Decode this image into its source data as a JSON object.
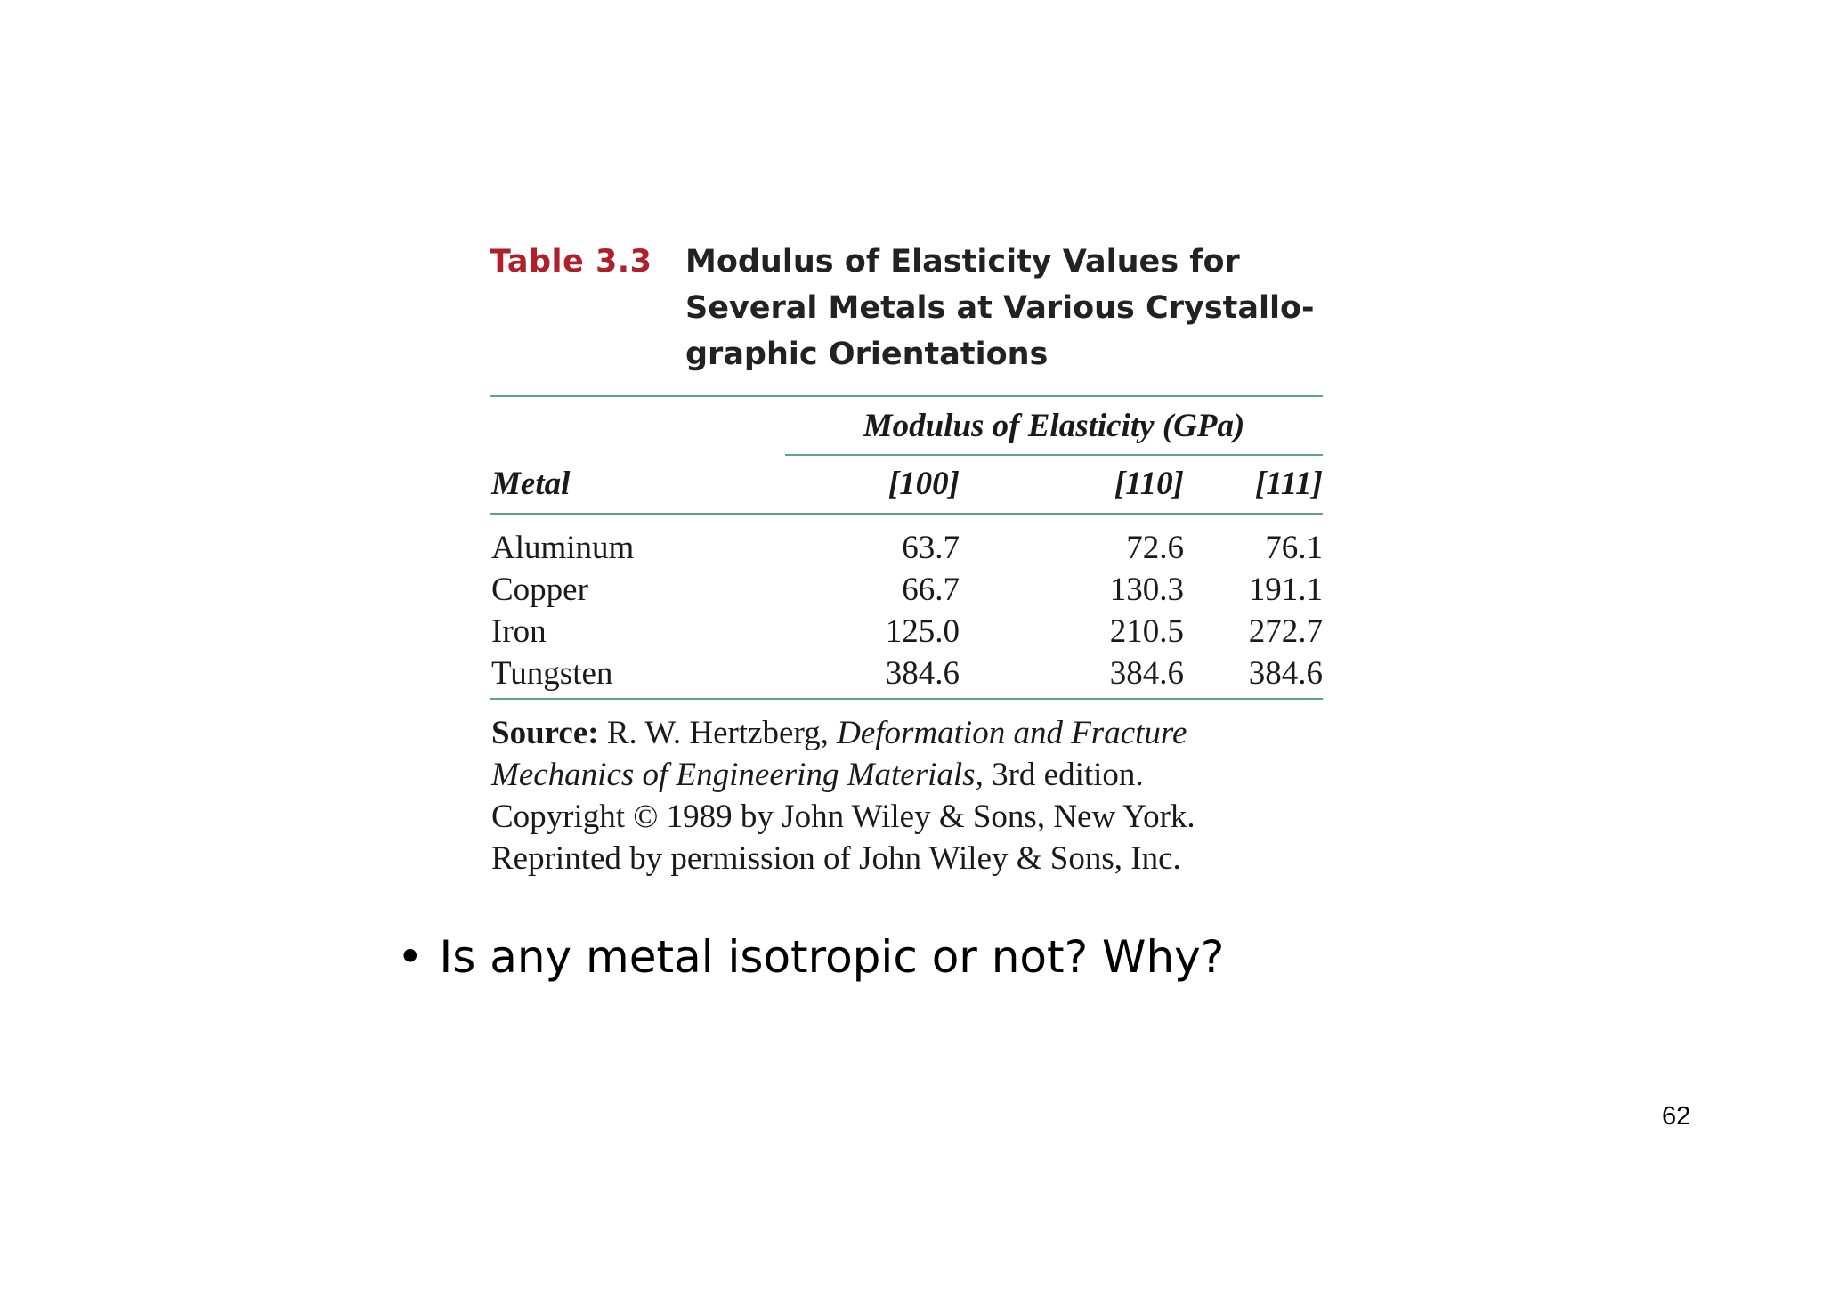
{
  "table": {
    "number": "Table 3.3",
    "title": "Modulus of Elasticity Values for Several Metals at Various Crystallo-graphic Orientations",
    "title_lines": [
      "Modulus of Elasticity Values for",
      "Several Metals at Various Crystallo-",
      "graphic Orientations"
    ],
    "group_header": "Modulus of Elasticity (GPa)",
    "columns": [
      "Metal",
      "[100]",
      "[110]",
      "[111]"
    ],
    "rows": [
      {
        "metal": "Aluminum",
        "v100": "63.7",
        "v110": "72.6",
        "v111": "76.1"
      },
      {
        "metal": "Copper",
        "v100": "66.7",
        "v110": "130.3",
        "v111": "191.1"
      },
      {
        "metal": "Iron",
        "v100": "125.0",
        "v110": "210.5",
        "v111": "272.7"
      },
      {
        "metal": "Tungsten",
        "v100": "384.6",
        "v110": "384.6",
        "v111": "384.6"
      }
    ],
    "source": {
      "label": "Source:",
      "author": "R. W. Hertzberg,",
      "book_title_1": "Deformation and Fracture",
      "book_title_2": "Mechanics of Engineering Materials,",
      "edition": "3rd edition.",
      "line3": "Copyright © 1989 by John Wiley & Sons, New York.",
      "line4": "Reprinted by permission of John Wiley & Sons, Inc."
    }
  },
  "bullet": {
    "marker": "•",
    "text": "Is any metal isotropic or not? Why?"
  },
  "page_number": "62",
  "colors": {
    "table_number": "#b0202a",
    "rule": "#5aa58a"
  }
}
